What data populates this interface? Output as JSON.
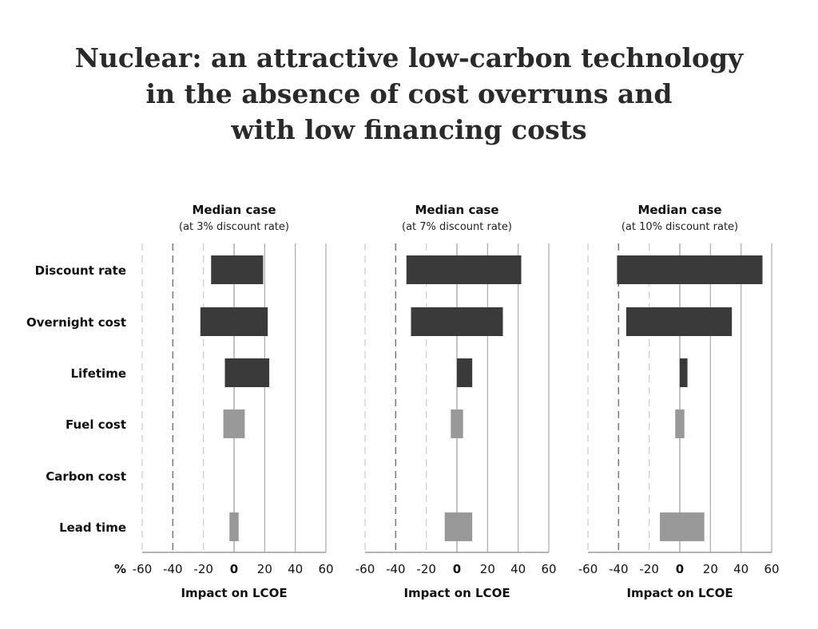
{
  "title_lines": [
    "Nuclear: an attractive low-carbon technology",
    "in the absence of cost overruns and",
    "with low financing costs"
  ],
  "percent_symbol": "%",
  "chart_data": {
    "type": "bar",
    "orientation": "horizontal",
    "categories": [
      "Discount rate",
      "Overnight cost",
      "Lifetime",
      "Fuel cost",
      "Carbon cost",
      "Lead time"
    ],
    "xlim": [
      -60,
      60
    ],
    "xticks": [
      -60,
      -40,
      -20,
      0,
      20,
      40,
      60
    ],
    "xtick_labels": [
      "-60",
      "-40",
      "-20",
      "0",
      "20",
      "40",
      "60"
    ],
    "xlabel": "Impact on LCOE",
    "colors": {
      "dark": "#3a3a3a",
      "light": "#999999"
    },
    "panels": [
      {
        "title": "Median case",
        "subtitle": "(at 3% discount rate)",
        "bars": [
          {
            "category": "Discount rate",
            "low": -15,
            "high": 19,
            "shade": "dark"
          },
          {
            "category": "Overnight cost",
            "low": -22,
            "high": 22,
            "shade": "dark"
          },
          {
            "category": "Lifetime",
            "low": -6,
            "high": 23,
            "shade": "dark"
          },
          {
            "category": "Fuel cost",
            "low": -7,
            "high": 7,
            "shade": "light"
          },
          {
            "category": "Carbon cost",
            "low": 0,
            "high": 0,
            "shade": "light"
          },
          {
            "category": "Lead time",
            "low": -3,
            "high": 3,
            "shade": "light"
          }
        ]
      },
      {
        "title": "Median case",
        "subtitle": "(at 7% discount rate)",
        "bars": [
          {
            "category": "Discount rate",
            "low": -33,
            "high": 42,
            "shade": "dark"
          },
          {
            "category": "Overnight cost",
            "low": -30,
            "high": 30,
            "shade": "dark"
          },
          {
            "category": "Lifetime",
            "low": 0,
            "high": 10,
            "shade": "dark"
          },
          {
            "category": "Fuel cost",
            "low": -4,
            "high": 4,
            "shade": "light"
          },
          {
            "category": "Carbon cost",
            "low": 0,
            "high": 0,
            "shade": "light"
          },
          {
            "category": "Lead time",
            "low": -8,
            "high": 10,
            "shade": "light"
          }
        ]
      },
      {
        "title": "Median case",
        "subtitle": "(at 10% discount rate)",
        "bars": [
          {
            "category": "Discount rate",
            "low": -41,
            "high": 54,
            "shade": "dark"
          },
          {
            "category": "Overnight cost",
            "low": -35,
            "high": 34,
            "shade": "dark"
          },
          {
            "category": "Lifetime",
            "low": 0,
            "high": 5,
            "shade": "dark"
          },
          {
            "category": "Fuel cost",
            "low": -3,
            "high": 3,
            "shade": "light"
          },
          {
            "category": "Carbon cost",
            "low": 0,
            "high": 0,
            "shade": "light"
          },
          {
            "category": "Lead time",
            "low": -13,
            "high": 16,
            "shade": "light"
          }
        ]
      }
    ]
  }
}
